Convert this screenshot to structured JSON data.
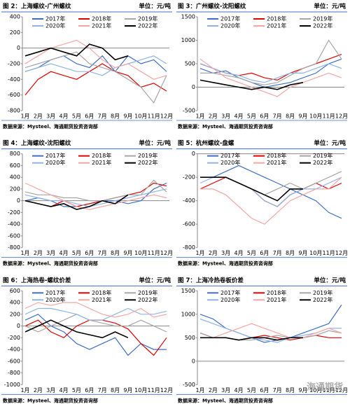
{
  "chart_data": [
    {
      "type": "line",
      "title": "图 2：上海螺纹-广州螺纹",
      "unit": "单位：元/吨",
      "source": "数据来源：Mysteel、海通期货投资咨询部",
      "categories": [
        "1月",
        "2月",
        "3月",
        "4月",
        "5月",
        "6月",
        "7月",
        "8月",
        "9月",
        "10月",
        "11月",
        "12月"
      ],
      "ylim": [
        -800,
        400
      ],
      "yticks": [
        -800,
        -600,
        -400,
        -200,
        0,
        200,
        400
      ],
      "series": [
        {
          "name": "2017年",
          "color": "#3f6fc4",
          "values": [
            -300,
            -250,
            -150,
            -100,
            -200,
            -250,
            -100,
            -300,
            -100,
            -200,
            -150,
            -300
          ]
        },
        {
          "name": "2018年",
          "color": "#e00000",
          "values": [
            -600,
            -400,
            -300,
            -350,
            -400,
            -300,
            -200,
            -300,
            -350,
            -500,
            -450,
            -550
          ]
        },
        {
          "name": "2019年",
          "color": "#a6a6a6",
          "values": [
            -250,
            -200,
            -150,
            -100,
            -50,
            -200,
            -250,
            -300,
            -400,
            -500,
            -700,
            -350
          ]
        },
        {
          "name": "2020年",
          "color": "#8fb4e3",
          "values": [
            -300,
            -250,
            -200,
            -250,
            -300,
            -300,
            -350,
            -250,
            -200,
            -150,
            -100,
            -200
          ]
        },
        {
          "name": "2021年",
          "color": "#f4a6a6",
          "values": [
            -200,
            -100,
            0,
            50,
            100,
            0,
            -150,
            -250,
            -200,
            -300,
            -400,
            -350
          ]
        },
        {
          "name": "2022年",
          "color": "#000000",
          "values": [
            -100,
            -50,
            0,
            -50,
            -100,
            50,
            0,
            -150,
            -100,
            null,
            null,
            null
          ]
        }
      ]
    },
    {
      "type": "line",
      "title": "图 3：广州螺纹-沈阳螺纹",
      "unit": "单位：元/吨",
      "source": "数据来源：Mysteel、海通期货投资咨询部",
      "categories": [
        "1月",
        "2月",
        "3月",
        "4月",
        "5月",
        "6月",
        "7月",
        "8月",
        "9月",
        "10月",
        "11月",
        "12月"
      ],
      "ylim": [
        -500,
        1500
      ],
      "yticks": [
        -500,
        0,
        500,
        1000,
        1500
      ],
      "series": [
        {
          "name": "2017年",
          "color": "#3f6fc4",
          "values": [
            400,
            300,
            350,
            200,
            100,
            0,
            50,
            100,
            200,
            300,
            500,
            600
          ]
        },
        {
          "name": "2018年",
          "color": "#e00000",
          "values": [
            500,
            400,
            300,
            250,
            300,
            200,
            150,
            300,
            400,
            500,
            600,
            700
          ]
        },
        {
          "name": "2019年",
          "color": "#a6a6a6",
          "values": [
            300,
            300,
            250,
            200,
            100,
            50,
            100,
            250,
            400,
            500,
            1000,
            600
          ]
        },
        {
          "name": "2020年",
          "color": "#8fb4e3",
          "values": [
            500,
            400,
            300,
            250,
            150,
            100,
            200,
            300,
            300,
            400,
            500,
            400
          ]
        },
        {
          "name": "2021年",
          "color": "#f4a6a6",
          "values": [
            600,
            400,
            200,
            100,
            0,
            -100,
            -200,
            0,
            100,
            200,
            300,
            200
          ]
        },
        {
          "name": "2022年",
          "color": "#000000",
          "values": [
            150,
            100,
            50,
            0,
            -50,
            0,
            -50,
            50,
            100,
            null,
            null,
            null
          ]
        }
      ]
    },
    {
      "type": "line",
      "title": "图 4：上海螺纹-沈阳螺纹",
      "unit": "单位：元/吨",
      "source": "数据来源：Mysteel、海通期货投资咨询部",
      "categories": [
        "1月",
        "2月",
        "3月",
        "4月",
        "5月",
        "6月",
        "7月",
        "8月",
        "9月",
        "10月",
        "11月",
        "12月"
      ],
      "ylim": [
        -800,
        800
      ],
      "yticks": [
        -800,
        -600,
        -400,
        -200,
        0,
        200,
        400,
        600,
        800
      ],
      "series": [
        {
          "name": "2017年",
          "color": "#3f6fc4",
          "values": [
            0,
            50,
            0,
            -100,
            -100,
            -50,
            0,
            0,
            -50,
            0,
            200,
            300
          ]
        },
        {
          "name": "2018年",
          "color": "#e00000",
          "values": [
            0,
            -50,
            -100,
            0,
            -100,
            -50,
            0,
            50,
            100,
            150,
            300,
            250
          ]
        },
        {
          "name": "2019年",
          "color": "#a6a6a6",
          "values": [
            150,
            100,
            100,
            50,
            50,
            0,
            0,
            50,
            100,
            100,
            350,
            150
          ]
        },
        {
          "name": "2020年",
          "color": "#8fb4e3",
          "values": [
            100,
            50,
            0,
            0,
            -50,
            -100,
            -50,
            0,
            50,
            100,
            150,
            200
          ]
        },
        {
          "name": "2021年",
          "color": "#f4a6a6",
          "values": [
            300,
            200,
            100,
            0,
            -100,
            -150,
            -100,
            -50,
            0,
            50,
            100,
            50
          ]
        },
        {
          "name": "2022年",
          "color": "#000000",
          "values": [
            0,
            -50,
            -100,
            -50,
            -150,
            -100,
            0,
            -50,
            100,
            null,
            null,
            null
          ]
        }
      ]
    },
    {
      "type": "line",
      "title": "图 5：杭州螺纹-盘螺",
      "unit": "单位：元/吨",
      "source": "数据来源：Mysteel、海通期货投资咨询部",
      "categories": [
        "1月",
        "2月",
        "3月",
        "4月",
        "5月",
        "6月",
        "7月",
        "8月",
        "9月",
        "10月",
        "11月",
        "12月"
      ],
      "ylim": [
        -800,
        0
      ],
      "yticks": [
        -800,
        -600,
        -400,
        -200,
        0
      ],
      "series": [
        {
          "name": "2017年",
          "color": "#3f6fc4",
          "values": [
            -200,
            -200,
            -150,
            -100,
            -150,
            -200,
            -250,
            -300,
            -350,
            -400,
            -500,
            -550
          ]
        },
        {
          "name": "2018年",
          "color": "#e00000",
          "values": [
            -300,
            -250,
            -200,
            -250,
            -300,
            -400,
            -450,
            -350,
            -300,
            -250,
            -300,
            -250
          ]
        },
        {
          "name": "2019年",
          "color": "#a6a6a6",
          "values": [
            -200,
            -200,
            -200,
            -250,
            -300,
            -350,
            -300,
            -250,
            -300,
            -250,
            -200,
            -150
          ]
        },
        {
          "name": "2020年",
          "color": "#8fb4e3",
          "values": [
            -250,
            -200,
            -200,
            -250,
            -300,
            -400,
            -450,
            -350,
            -300,
            -300,
            -250,
            -200
          ]
        },
        {
          "name": "2021年",
          "color": "#f4a6a6",
          "values": [
            -300,
            -300,
            -350,
            -450,
            -550,
            -600,
            -500,
            -400,
            -350,
            -300,
            -300,
            -200
          ]
        },
        {
          "name": "2022年",
          "color": "#000000",
          "values": [
            -200,
            -200,
            -200,
            -250,
            -300,
            -350,
            -400,
            -300,
            -300,
            null,
            null,
            null
          ]
        }
      ]
    },
    {
      "type": "line",
      "title": "图 6：上海热卷-螺纹价差",
      "unit": "单位：元/吨",
      "source": "数据来源：Mysteel、海通期货投资咨询部",
      "categories": [
        "1月",
        "2月",
        "3月",
        "4月",
        "5月",
        "6月",
        "7月",
        "8月",
        "9月",
        "10月",
        "11月",
        "12月"
      ],
      "ylim": [
        -1000,
        600
      ],
      "yticks": [
        -1000,
        -800,
        -600,
        -400,
        -200,
        0,
        200,
        400,
        600
      ],
      "series": [
        {
          "name": "2017年",
          "color": "#3f6fc4",
          "values": [
            100,
            200,
            0,
            -100,
            -300,
            -400,
            -300,
            -200,
            -500,
            -300,
            -400,
            -400
          ]
        },
        {
          "name": "2018年",
          "color": "#e00000",
          "values": [
            0,
            100,
            -100,
            -200,
            0,
            100,
            100,
            50,
            -50,
            -300,
            -500,
            -200
          ]
        },
        {
          "name": "2019年",
          "color": "#a6a6a6",
          "values": [
            0,
            -100,
            0,
            100,
            200,
            100,
            50,
            0,
            0,
            100,
            0,
            -100
          ]
        },
        {
          "name": "2020年",
          "color": "#8fb4e3",
          "values": [
            200,
            300,
            300,
            250,
            200,
            100,
            100,
            200,
            300,
            200,
            200,
            250
          ]
        },
        {
          "name": "2021年",
          "color": "#f4a6a6",
          "values": [
            300,
            400,
            350,
            400,
            400,
            300,
            200,
            150,
            200,
            300,
            150,
            200
          ]
        },
        {
          "name": "2022年",
          "color": "#000000",
          "values": [
            -100,
            0,
            100,
            0,
            -100,
            -150,
            -200,
            -100,
            -200,
            null,
            null,
            null
          ]
        }
      ]
    },
    {
      "type": "line",
      "title": "图 7：上海冷热卷板价差",
      "unit": "单位：元/吨",
      "source": "数据来源：Mysteel、海通期货投资咨询部",
      "watermark": "海通期货",
      "categories": [
        "1月",
        "2月",
        "3月",
        "4月",
        "5月",
        "6月",
        "7月",
        "8月",
        "9月",
        "10月",
        "11月",
        "12月"
      ],
      "ylim": [
        -500,
        1500
      ],
      "yticks": [
        -500,
        0,
        500,
        1000,
        1500
      ],
      "series": [
        {
          "name": "2017年",
          "color": "#3f6fc4",
          "values": [
            1000,
            900,
            700,
            600,
            500,
            400,
            450,
            500,
            600,
            700,
            800,
            1200
          ]
        },
        {
          "name": "2018年",
          "color": "#e00000",
          "values": [
            600,
            500,
            500,
            450,
            500,
            550,
            500,
            450,
            500,
            550,
            500,
            500
          ]
        },
        {
          "name": "2019年",
          "color": "#a6a6a6",
          "values": [
            600,
            500,
            500,
            450,
            450,
            500,
            550,
            500,
            500,
            550,
            650,
            600
          ]
        },
        {
          "name": "2020年",
          "color": "#8fb4e3",
          "values": [
            900,
            800,
            700,
            600,
            500,
            450,
            400,
            500,
            550,
            600,
            700,
            700
          ]
        },
        {
          "name": "2021年",
          "color": "#f4a6a6",
          "values": [
            500,
            500,
            600,
            700,
            800,
            700,
            600,
            500,
            500,
            600,
            700,
            600
          ]
        },
        {
          "name": "2022年",
          "color": "#000000",
          "values": [
            500,
            500,
            500,
            450,
            500,
            500,
            450,
            500,
            500,
            null,
            null,
            null
          ]
        }
      ]
    }
  ]
}
